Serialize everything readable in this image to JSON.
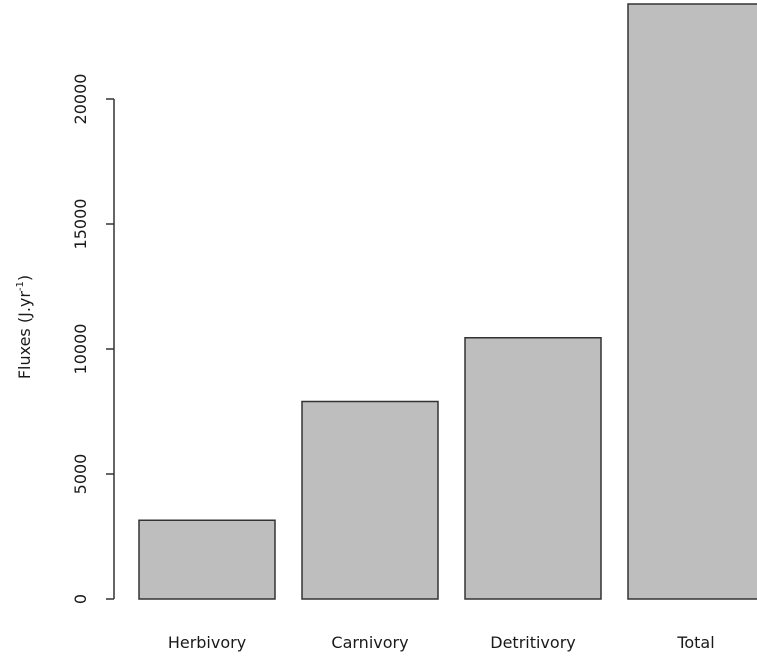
{
  "chart_data": {
    "type": "bar",
    "categories": [
      "Herbivory",
      "Carnivory",
      "Detritivory",
      "Total"
    ],
    "values": [
      3150,
      7900,
      10450,
      23800
    ],
    "ylabel": "Fluxes (J.yr",
    "ylabel_sup": "-1",
    "ylabel_close": ")",
    "yticks": [
      "0",
      "5000",
      "10000",
      "15000",
      "20000"
    ],
    "ytick_values": [
      0,
      5000,
      10000,
      15000,
      20000
    ],
    "bar_color": "#bebebe",
    "bar_stroke": "#333333",
    "grid": false
  }
}
